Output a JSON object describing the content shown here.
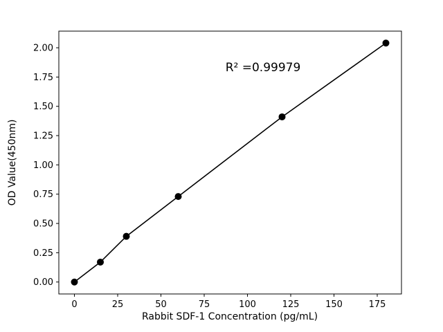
{
  "chart_data": {
    "type": "line",
    "x": [
      0,
      15,
      30,
      60,
      120,
      180
    ],
    "y": [
      0.0,
      0.17,
      0.39,
      0.73,
      1.41,
      2.04
    ],
    "title": "",
    "xlabel": "Rabbit SDF-1 Concentration (pg/mL)",
    "ylabel": "OD Value(450nm)",
    "annotation": "R² =0.99979",
    "xlim": [
      -9,
      189
    ],
    "ylim": [
      -0.102,
      2.142
    ],
    "x_ticks": [
      0,
      25,
      50,
      75,
      100,
      125,
      150,
      175
    ],
    "y_ticks": [
      0.0,
      0.25,
      0.5,
      0.75,
      1.0,
      1.25,
      1.5,
      1.75,
      2.0
    ],
    "grid": false,
    "legend": null,
    "line_color": "#000000",
    "marker_color": "#000000",
    "background_color": "#ffffff",
    "marker_style": "circle",
    "marker_radius": 5
  }
}
